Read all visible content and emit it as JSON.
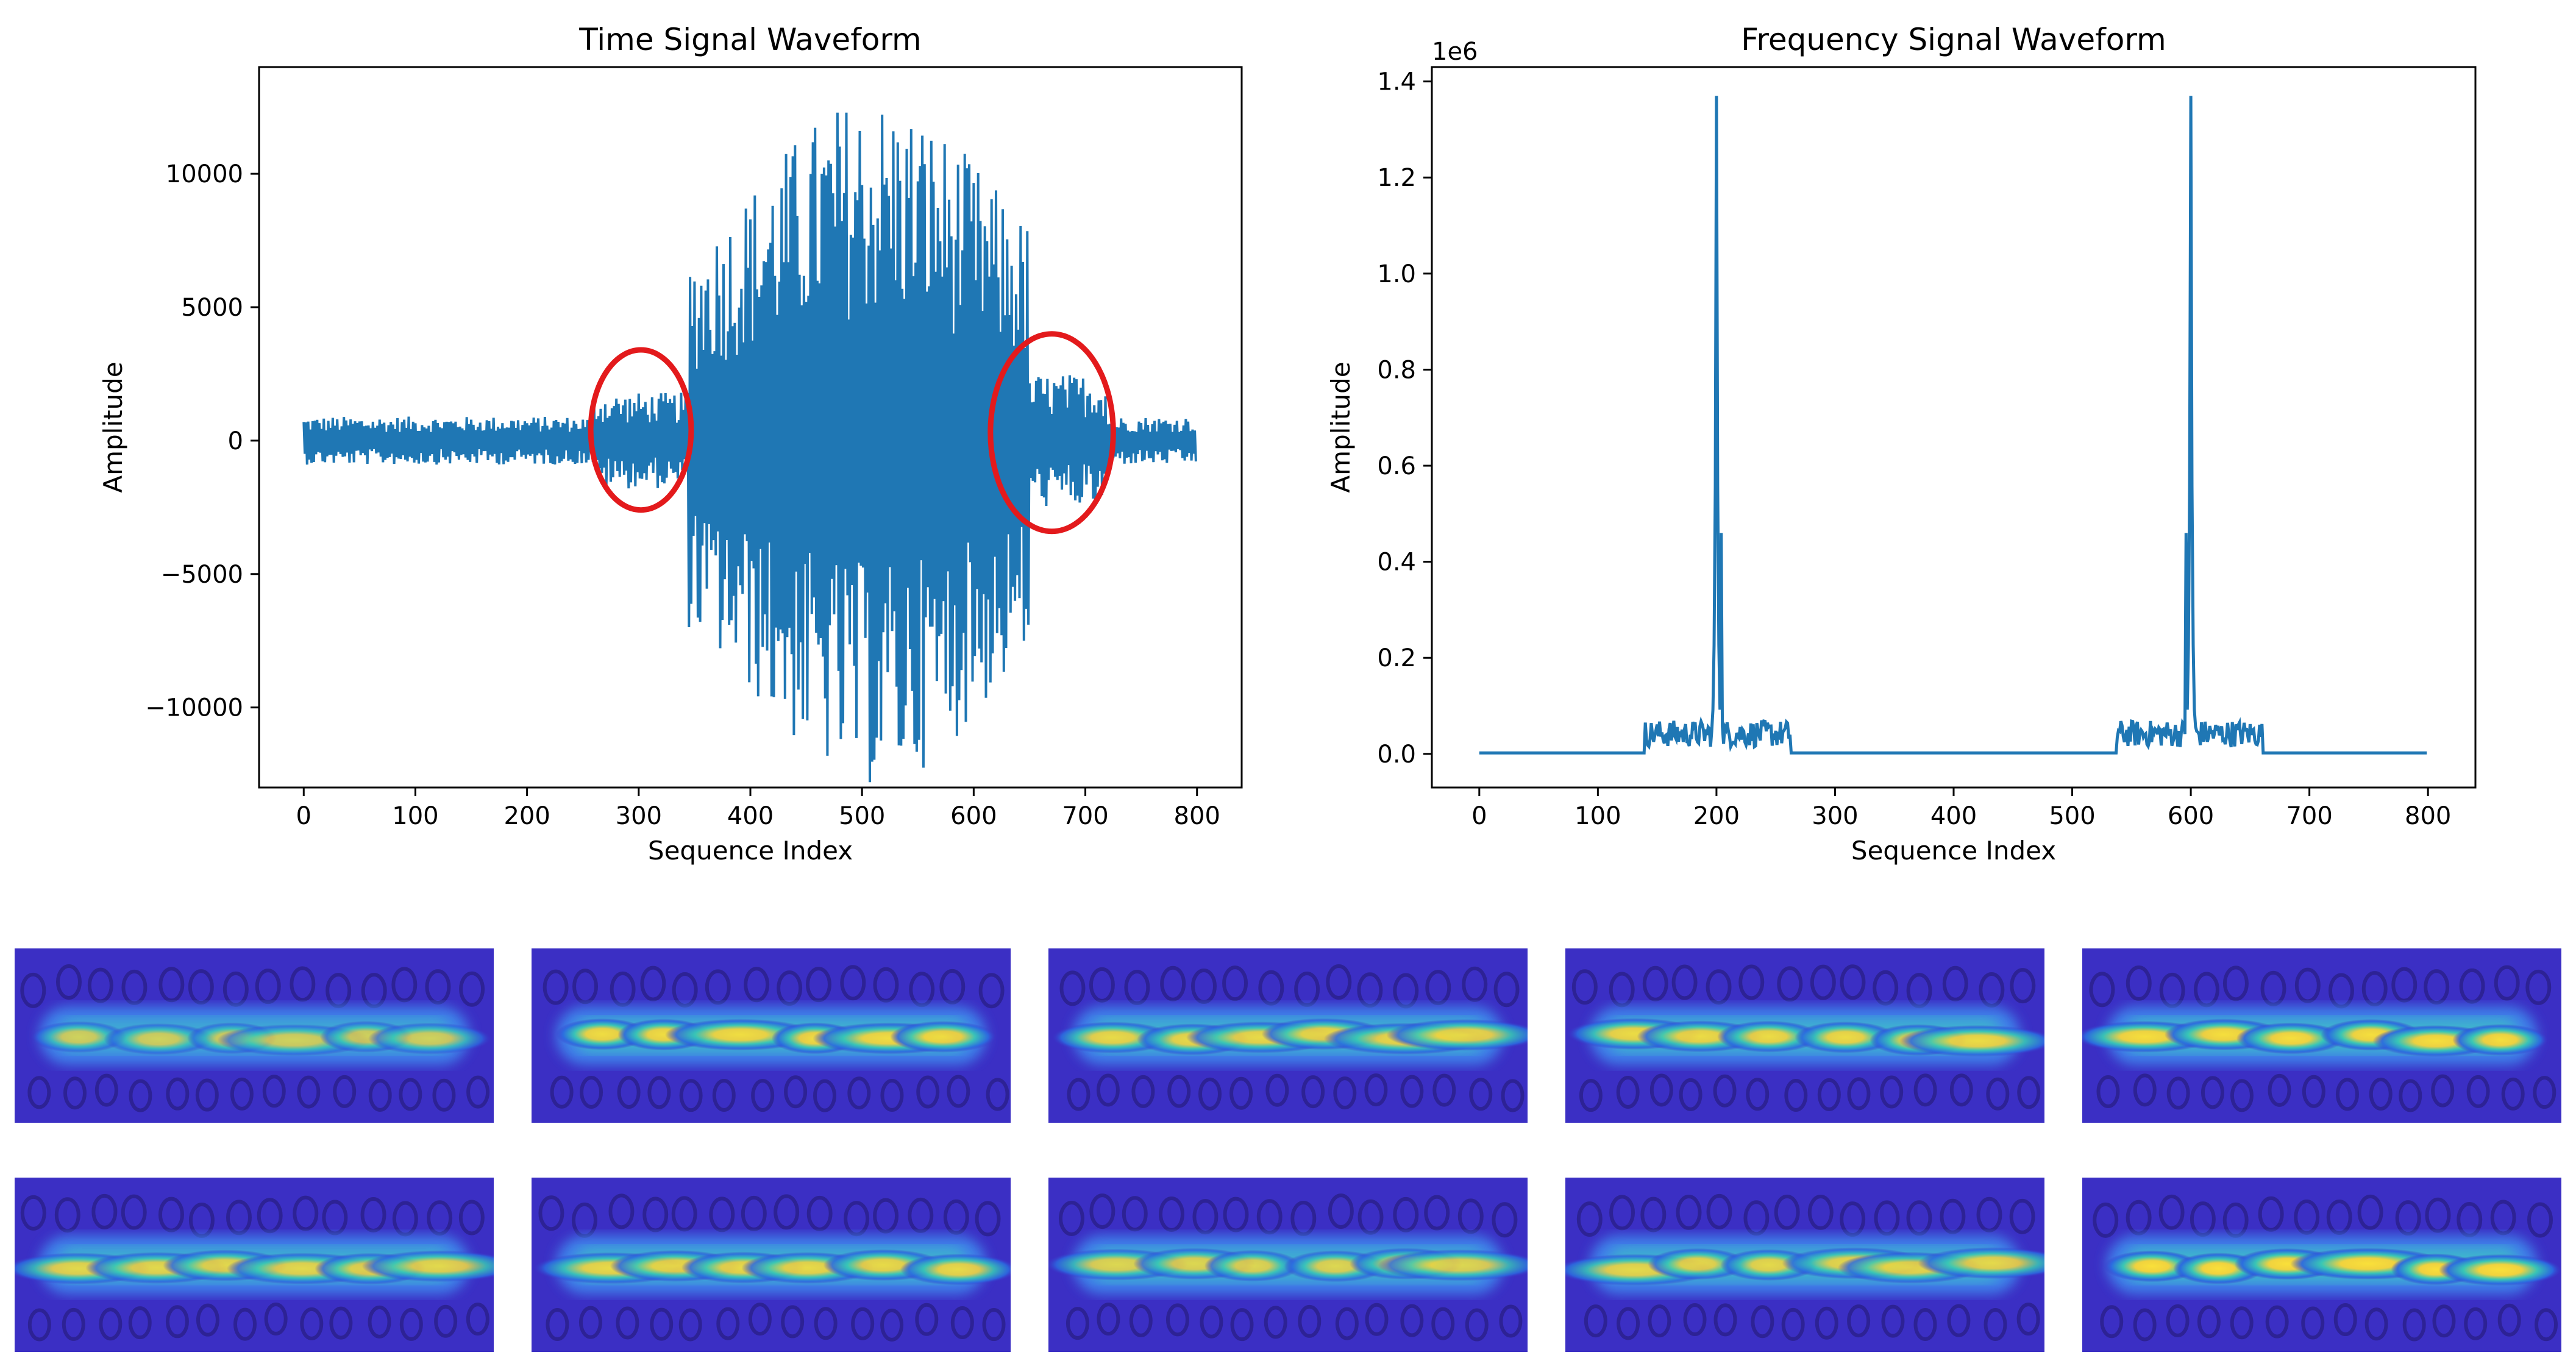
{
  "chart_data": [
    {
      "type": "line",
      "title": "Time Signal Waveform",
      "xlabel": "Sequence Index",
      "ylabel": "Amplitude",
      "xlim": [
        -40,
        840
      ],
      "ylim": [
        -13000,
        14000
      ],
      "xticks": [
        0,
        100,
        200,
        300,
        400,
        500,
        600,
        700,
        800
      ],
      "yticks": [
        -10000,
        -5000,
        0,
        5000,
        10000
      ],
      "ytick_labels": [
        "−10000",
        "−5000",
        "0",
        "5000",
        "10000"
      ],
      "grid": false,
      "color": "#1f77b4",
      "series_model": {
        "n_points": 800,
        "segments": [
          {
            "x": [
              0,
              260
            ],
            "amplitude": 900
          },
          {
            "x": [
              260,
              345
            ],
            "amplitude": 1800
          },
          {
            "x": [
              345,
              650
            ],
            "amplitude_peak": 13000,
            "shape": "bell",
            "center": 510
          },
          {
            "x": [
              650,
              720
            ],
            "amplitude": 2500
          },
          {
            "x": [
              720,
              800
            ],
            "amplitude": 900
          }
        ]
      },
      "annotations": [
        {
          "type": "ellipse",
          "color": "#e31a1c",
          "center_x": 302,
          "center_y": 400,
          "width_x": 90,
          "height_y": 6000
        },
        {
          "type": "ellipse",
          "color": "#e31a1c",
          "center_x": 670,
          "center_y": 300,
          "width_x": 110,
          "height_y": 7400
        }
      ]
    },
    {
      "type": "line",
      "title": "Frequency Signal Waveform",
      "xlabel": "Sequence Index",
      "ylabel": "Amplitude",
      "offset_text": "1e6",
      "xlim": [
        -40,
        840
      ],
      "ylim": [
        -0.07,
        1.43
      ],
      "xticks": [
        0,
        100,
        200,
        300,
        400,
        500,
        600,
        700,
        800
      ],
      "yticks": [
        0.0,
        0.2,
        0.4,
        0.6,
        0.8,
        1.0,
        1.2,
        1.4
      ],
      "ytick_labels": [
        "0.0",
        "0.2",
        "0.4",
        "0.6",
        "0.8",
        "1.0",
        "1.2",
        "1.4"
      ],
      "grid": false,
      "color": "#1f77b4",
      "series_model": {
        "n_points": 800,
        "peaks": [
          {
            "x": 200,
            "value": 1.37,
            "secondary": [
              {
                "x": 204,
                "value": 0.46
              }
            ],
            "band": [
              140,
              262
            ],
            "band_level": 0.07
          },
          {
            "x": 600,
            "value": 1.37,
            "secondary": [
              {
                "x": 596,
                "value": 0.46
              }
            ],
            "band": [
              538,
              660
            ],
            "band_level": 0.07
          }
        ]
      }
    },
    {
      "type": "heatmap",
      "description_count": 10,
      "layout": "2 rows x 5 columns",
      "colormap": "jet-like (navy to blue to cyan to yellow)",
      "tiles": [
        {
          "row": 0,
          "col": 0,
          "intensity": 0.75
        },
        {
          "row": 0,
          "col": 1,
          "intensity": 0.92
        },
        {
          "row": 0,
          "col": 2,
          "intensity": 0.88
        },
        {
          "row": 0,
          "col": 3,
          "intensity": 0.9
        },
        {
          "row": 0,
          "col": 4,
          "intensity": 0.95
        },
        {
          "row": 1,
          "col": 0,
          "intensity": 0.85
        },
        {
          "row": 1,
          "col": 1,
          "intensity": 0.88
        },
        {
          "row": 1,
          "col": 2,
          "intensity": 0.82
        },
        {
          "row": 1,
          "col": 3,
          "intensity": 0.86
        },
        {
          "row": 1,
          "col": 4,
          "intensity": 0.97
        }
      ]
    }
  ]
}
